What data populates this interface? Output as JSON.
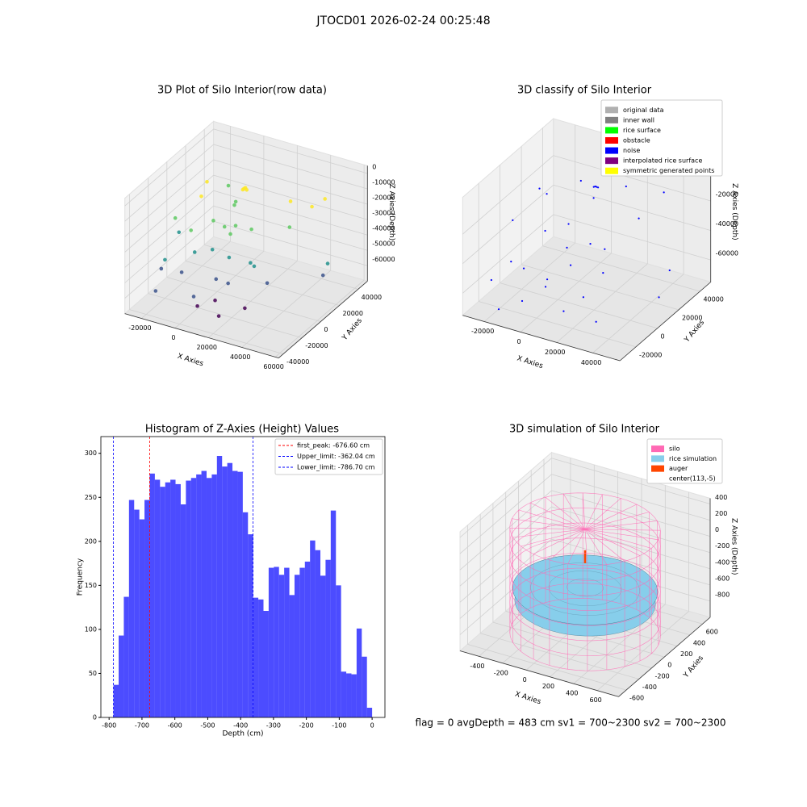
{
  "title": "JTOCD01 2026-02-24 00:25:48",
  "footer": "flag = 0     avgDepth = 483 cm  sv1 = 700~2300  sv2 = 700~2300",
  "chart_data": [
    {
      "type": "scatter3d",
      "title": "3D Plot of Silo Interior(row data)",
      "x_label": "X Axies",
      "y_label": "Y Axies",
      "z_label": "Z Axies (Depth)",
      "xlim": [
        -30000,
        62000
      ],
      "ylim": [
        -45000,
        50000
      ],
      "zlim": [
        -70000,
        5000
      ],
      "xticks": [
        -20000,
        0,
        20000,
        40000,
        60000
      ],
      "yticks": [
        -40000,
        -20000,
        0,
        20000,
        40000
      ],
      "zticks": [
        0,
        -10000,
        -20000,
        -30000,
        -40000,
        -50000,
        -60000
      ],
      "colormap": "viridis",
      "points": [
        [
          5000,
          20000,
          -12000
        ],
        [
          5500,
          20500,
          -11500
        ],
        [
          4500,
          19500,
          -12500
        ],
        [
          6000,
          21000,
          -13000
        ],
        [
          -20000,
          25000,
          -18000
        ],
        [
          -15000,
          10000,
          -18000
        ],
        [
          -10000,
          30000,
          -20000
        ],
        [
          0,
          20000,
          -22000
        ],
        [
          2000,
          15000,
          -21000
        ],
        [
          30000,
          25000,
          -15000
        ],
        [
          40000,
          30000,
          -18000
        ],
        [
          45000,
          35000,
          -14000
        ],
        [
          -25000,
          0,
          -30000
        ],
        [
          -20000,
          -5000,
          -35000
        ],
        [
          -5000,
          5000,
          -28000
        ],
        [
          0,
          8000,
          -32000
        ],
        [
          -10000,
          -10000,
          -28000
        ],
        [
          8000,
          0,
          -30000
        ],
        [
          15000,
          10000,
          -30000
        ],
        [
          10000,
          2000,
          -25000
        ],
        [
          35000,
          15000,
          -25000
        ],
        [
          -5000,
          -15000,
          -38000
        ],
        [
          0,
          -5000,
          -40000
        ],
        [
          10000,
          -5000,
          -42000
        ],
        [
          20000,
          0,
          -45000
        ],
        [
          25000,
          -5000,
          -43000
        ],
        [
          55000,
          20000,
          -45000
        ],
        [
          55000,
          15000,
          -50000
        ],
        [
          -20000,
          -20000,
          -45000
        ],
        [
          -25000,
          -15000,
          -55000
        ],
        [
          -10000,
          -20000,
          -50000
        ],
        [
          5000,
          -10000,
          -55000
        ],
        [
          15000,
          -15000,
          -52000
        ],
        [
          30000,
          0,
          -55000
        ],
        [
          -20000,
          -30000,
          -60000
        ],
        [
          0,
          -25000,
          -60000
        ],
        [
          10000,
          -20000,
          -62000
        ],
        [
          25000,
          -15000,
          -65000
        ],
        [
          5000,
          -30000,
          -62000
        ],
        [
          15000,
          -25000,
          -68000
        ]
      ]
    },
    {
      "type": "histogram",
      "title": "Histogram of Z-Axies (Height) Values",
      "x_label": "Depth (cm)",
      "y_label": "Frequency",
      "color": "blue",
      "alpha": 0.7,
      "xlim": [
        -825,
        39
      ],
      "ylim": [
        0,
        319
      ],
      "xticks": [
        -800,
        -700,
        -600,
        -500,
        -400,
        -300,
        -200,
        -100,
        0
      ],
      "yticks": [
        0,
        50,
        100,
        150,
        200,
        250,
        300
      ],
      "bins": [
        -786.7,
        -770.97,
        -755.23,
        -739.5,
        -723.76,
        -708.03,
        -692.3,
        -676.56,
        -660.83,
        -645.09,
        -629.36,
        -613.63,
        -597.89,
        -582.16,
        -566.42,
        -550.69,
        -534.96,
        -519.22,
        -503.49,
        -487.75,
        -472.02,
        -456.29,
        -440.55,
        -424.82,
        -409.08,
        -393.35,
        -377.62,
        -361.88,
        -346.15,
        -330.41,
        -314.68,
        -298.95,
        -283.21,
        -267.48,
        -251.74,
        -236.01,
        -220.28,
        -204.54,
        -188.81,
        -173.07,
        -157.34,
        -141.61,
        -125.87,
        -110.14,
        -94.4,
        -78.67,
        -62.94,
        -47.2,
        -31.47,
        -15.73,
        0.0
      ],
      "values": [
        37,
        93,
        137,
        247,
        236,
        225,
        247,
        277,
        270,
        262,
        267,
        270,
        265,
        242,
        269,
        272,
        276,
        280,
        272,
        276,
        297,
        285,
        289,
        280,
        279,
        233,
        208,
        136,
        134,
        121,
        170,
        171,
        162,
        170,
        139,
        162,
        170,
        177,
        201,
        190,
        161,
        179,
        235,
        150,
        52,
        50,
        49,
        101,
        69,
        11
      ],
      "vlines": [
        {
          "name": "first_peak: -676.60 cm",
          "value": -676.6,
          "color": "red"
        },
        {
          "name": "Upper_limit: -362.04 cm",
          "value": -362.04,
          "color": "blue"
        },
        {
          "name": "Lower_limit: -786.70 cm",
          "value": -786.7,
          "color": "blue"
        }
      ]
    },
    {
      "type": "scatter3d",
      "title": "3D classify of Silo Interior",
      "x_label": "X Axies",
      "y_label": "Y Axies",
      "z_label": "Z Axies (Depth)",
      "xlim": [
        -32000,
        55000
      ],
      "ylim": [
        -35000,
        50000
      ],
      "zlim": [
        -75000,
        5000
      ],
      "xticks": [
        -20000,
        0,
        20000,
        40000
      ],
      "yticks": [
        -20000,
        0,
        20000,
        40000
      ],
      "zticks": [
        -20000,
        -40000,
        -60000
      ],
      "series": [
        {
          "name": "original data",
          "color": "#b0b0b0",
          "points": []
        },
        {
          "name": "inner wall",
          "color": "#808080",
          "points": []
        },
        {
          "name": "rice surface",
          "color": "#00ff00",
          "points": []
        },
        {
          "name": "obstacle",
          "color": "red",
          "points": []
        },
        {
          "name": "noise",
          "color": "blue",
          "points": [
            [
              10000,
              18000,
              -6000
            ],
            [
              10500,
              18500,
              -6500
            ],
            [
              9500,
              17500,
              -6200
            ],
            [
              11000,
              19000,
              -7000
            ],
            [
              -22000,
              20000,
              -20000
            ],
            [
              -15000,
              15000,
              -18000
            ],
            [
              -5000,
              30000,
              -15000
            ],
            [
              5000,
              25000,
              -20000
            ],
            [
              20000,
              30000,
              -10000
            ],
            [
              35000,
              40000,
              -15000
            ],
            [
              30000,
              25000,
              -25000
            ],
            [
              -25000,
              0,
              -30000
            ],
            [
              -10000,
              5000,
              -35000
            ],
            [
              0,
              10000,
              -30000
            ],
            [
              5000,
              0,
              -38000
            ],
            [
              15000,
              5000,
              -35000
            ],
            [
              20000,
              10000,
              -40000
            ],
            [
              10000,
              -5000,
              -45000
            ],
            [
              25000,
              0,
              -48000
            ],
            [
              -20000,
              -10000,
              -50000
            ],
            [
              -10000,
              -15000,
              -48000
            ],
            [
              0,
              -10000,
              -55000
            ],
            [
              5000,
              -20000,
              -52000
            ],
            [
              50000,
              20000,
              -50000
            ],
            [
              50000,
              10000,
              -62000
            ],
            [
              -25000,
              -20000,
              -58000
            ],
            [
              -5000,
              -25000,
              -62000
            ],
            [
              15000,
              -20000,
              -65000
            ],
            [
              20000,
              -10000,
              -60000
            ],
            [
              -15000,
              -30000,
              -68000
            ],
            [
              30000,
              -15000,
              -70000
            ]
          ]
        },
        {
          "name": "interpolated rice surface",
          "color": "purple",
          "points": []
        },
        {
          "name": "symmetric generated points",
          "color": "yellow",
          "points": []
        }
      ]
    },
    {
      "type": "surface3d",
      "title": "3D simulation of Silo Interior",
      "x_label": "X Axies",
      "y_label": "Y Axies",
      "z_label": "Z Axies (Depth)",
      "xlim": [
        -560,
        780
      ],
      "ylim": [
        -720,
        720
      ],
      "zlim": [
        -1000,
        470
      ],
      "xticks": [
        -400,
        -200,
        0,
        200,
        400,
        600
      ],
      "yticks": [
        -600,
        -400,
        -200,
        0,
        200,
        400,
        600
      ],
      "zticks": [
        -800,
        -600,
        -400,
        -200,
        0,
        200,
        400
      ],
      "series": [
        {
          "name": "silo",
          "color": "hotpink",
          "center": [
            113,
            -5
          ],
          "radius": 560,
          "zlim": [
            -1000,
            300
          ]
        },
        {
          "name": "rice simulation",
          "color": "skyblue",
          "center": [
            113,
            -5
          ],
          "radius": 540,
          "z": -450
        },
        {
          "name": "auger",
          "color": "orangered",
          "points": [
            [
              113,
              -5,
              -120
            ],
            [
              113,
              -5,
              40
            ]
          ]
        },
        {
          "name": "center(113,-5)",
          "color": "white"
        }
      ]
    }
  ]
}
